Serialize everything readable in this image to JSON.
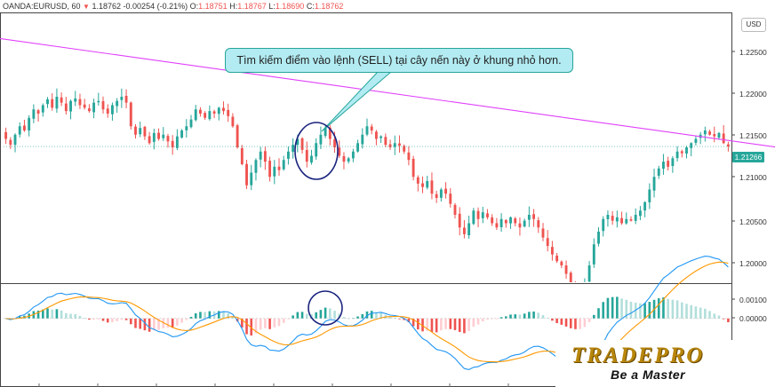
{
  "header": {
    "symbol": "OANDA:EURUSD, 60",
    "last": "1.18762",
    "change": "-0.00254",
    "change_pct": "(-0.21%)",
    "o_label": "O:",
    "o_value": "1.18751",
    "h_label": "H:",
    "h_value": "1.18767",
    "l_label": "L:",
    "l_value": "1.18690",
    "c_label": "C:",
    "c_value": "1.18762"
  },
  "annotation": {
    "text": "Tìm kiếm điểm vào lệnh (SELL) tại cây nến này ở khung nhỏ hơn."
  },
  "axis": {
    "currency": "USD",
    "price_ticks": [
      "1.22500",
      "1.22000",
      "1.21500",
      "1.21000",
      "1.20500",
      "1.20000"
    ],
    "current_price": "1.21266",
    "macd_ticks": [
      "0.00100",
      "0.00000"
    ]
  },
  "logo": {
    "brand": "TRADEPRO",
    "tagline": "Be a Master"
  },
  "colors": {
    "up": "#26a69a",
    "down": "#ef5350",
    "trendline": "#e040fb",
    "macd": "#2196f3",
    "signal": "#ff9800",
    "circle": "#1a237e"
  },
  "chart_data": {
    "type": "candlestick",
    "price_range": [
      1.1965,
      1.2285
    ],
    "trendline": {
      "from": [
        0,
        1.2254
      ],
      "to": [
        207,
        1.2094
      ]
    },
    "price": [
      1.2135,
      1.2128,
      1.214,
      1.215,
      1.2145,
      1.216,
      1.217,
      1.2165,
      1.2175,
      1.2182,
      1.2172,
      1.2185,
      1.2178,
      1.2168,
      1.218,
      1.2183,
      1.2175,
      1.2172,
      1.2168,
      1.2178,
      1.218,
      1.217,
      1.2165,
      1.2175,
      1.218,
      1.2185,
      1.2178,
      1.215,
      1.214,
      1.2148,
      1.2138,
      1.213,
      1.2142,
      1.2135,
      1.214,
      1.2132,
      1.2125,
      1.2138,
      1.2145,
      1.215,
      1.2158,
      1.217,
      1.2165,
      1.216,
      1.2168,
      1.2165,
      1.2172,
      1.2168,
      1.2162,
      1.215,
      1.2125,
      1.2105,
      1.208,
      1.2095,
      1.211,
      1.212,
      1.2108,
      1.209,
      1.2102,
      1.2098,
      1.211,
      1.212,
      1.2128,
      1.2135,
      1.2122,
      1.2108,
      1.2115,
      1.213,
      1.214,
      1.2148,
      1.2135,
      1.2125,
      1.2115,
      1.2108,
      1.2112,
      1.212,
      1.213,
      1.214,
      1.215,
      1.2145,
      1.2135,
      1.2138,
      1.2128,
      1.2125,
      1.213,
      1.2127,
      1.212,
      1.211,
      1.209,
      1.2082,
      1.2078,
      1.2085,
      1.207,
      1.2065,
      1.2075,
      1.207,
      1.2058,
      1.2045,
      1.203,
      1.2022,
      1.2035,
      1.205,
      1.204,
      1.2048,
      1.2042,
      1.2035,
      1.203,
      1.204,
      1.2035,
      1.2042,
      1.2035,
      1.203,
      1.2038,
      1.2045,
      1.204,
      1.203,
      1.2018,
      1.2008,
      1.1998,
      1.199,
      1.1985,
      1.1975,
      1.1965,
      1.196,
      1.1958,
      1.1965,
      1.1985,
      1.201,
      1.2025,
      1.204,
      1.2045,
      1.2038,
      1.2042,
      1.2035,
      1.204,
      1.2038,
      1.2045,
      1.205,
      1.206,
      1.2075,
      1.209,
      1.21,
      1.2108,
      1.2102,
      1.2112,
      1.212,
      1.2118,
      1.2125,
      1.213,
      1.2135,
      1.214,
      1.2145,
      1.214,
      1.2138,
      1.2142,
      1.213,
      1.2126
    ],
    "macd_range": [
      -0.0017,
      0.0016
    ]
  }
}
